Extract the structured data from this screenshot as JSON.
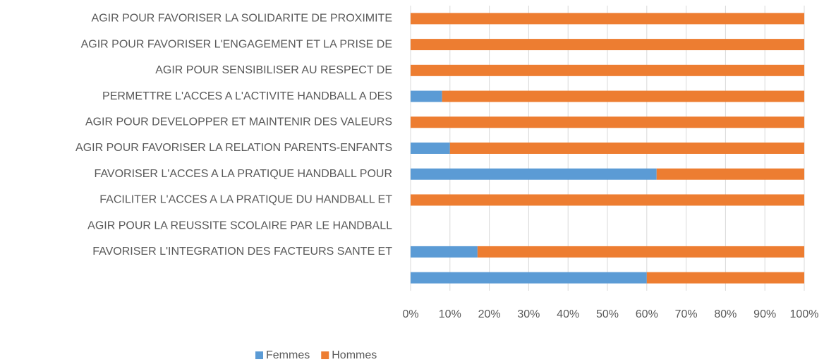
{
  "chart_data": {
    "type": "stacked_barh",
    "categories": [
      "AGIR POUR FAVORISER LA SOLIDARITE DE PROXIMITE",
      "AGIR POUR FAVORISER L'ENGAGEMENT ET LA PRISE DE",
      "AGIR POUR SENSIBILISER AU RESPECT DE",
      "PERMETTRE L'ACCES A L'ACTIVITE HANDBALL A DES",
      "AGIR POUR DEVELOPPER ET MAINTENIR DES VALEURS",
      "AGIR POUR FAVORISER LA RELATION PARENTS-ENFANTS",
      "FAVORISER L'ACCES A LA PRATIQUE HANDBALL POUR",
      "FACILITER L'ACCES A LA PRATIQUE DU HANDBALL ET",
      "AGIR POUR LA REUSSITE SCOLAIRE PAR LE HANDBALL",
      "FAVORISER L'INTEGRATION DES FACTEURS SANTE ET",
      null
    ],
    "series": [
      {
        "name": "Femmes",
        "color": "#5b9bd5",
        "values": [
          0,
          0,
          0,
          8,
          0,
          10,
          62.5,
          0,
          null,
          17,
          60
        ]
      },
      {
        "name": "Hommes",
        "color": "#ed7d31",
        "values": [
          100,
          100,
          100,
          92,
          100,
          90,
          37.5,
          100,
          null,
          83,
          40
        ]
      }
    ],
    "xlim": [
      0,
      100
    ],
    "xticks": [
      {
        "value": 0,
        "label": "0%"
      },
      {
        "value": 10,
        "label": "10%"
      },
      {
        "value": 20,
        "label": "20%"
      },
      {
        "value": 30,
        "label": "30%"
      },
      {
        "value": 40,
        "label": "40%"
      },
      {
        "value": 50,
        "label": "50%"
      },
      {
        "value": 60,
        "label": "60%"
      },
      {
        "value": 70,
        "label": "70%"
      },
      {
        "value": 80,
        "label": "80%"
      },
      {
        "value": 90,
        "label": "90%"
      },
      {
        "value": 100,
        "label": "100%"
      }
    ],
    "grid": true,
    "legend": "bottom"
  }
}
